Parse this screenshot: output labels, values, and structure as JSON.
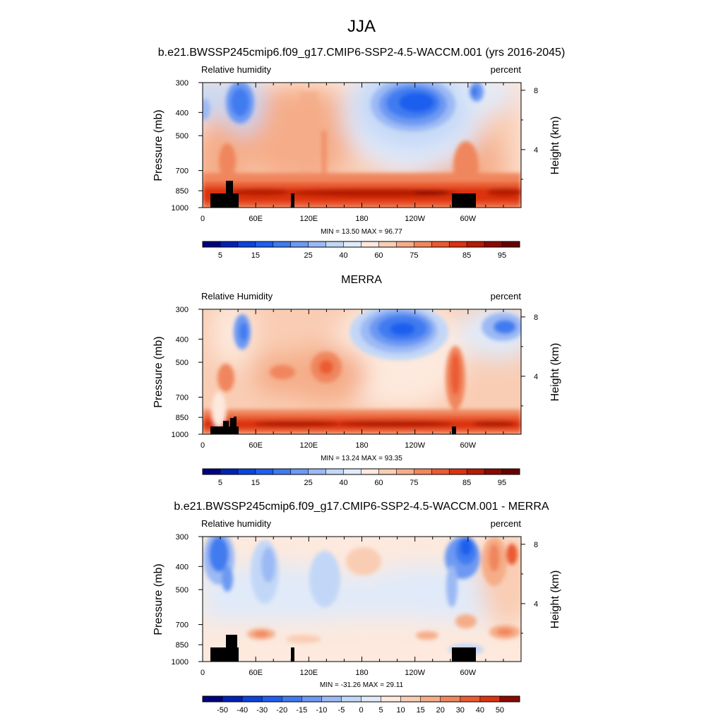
{
  "page": {
    "season": "JJA"
  },
  "chart_data": [
    {
      "type": "heatmap",
      "title": "b.e21.BWSSP245cmip6.f09_g17.CMIP6-SSP2-4.5-WACCM.001 (yrs 2016-2045)",
      "left_string": "Relative humidity",
      "right_string": "percent",
      "ylabel": "Pressure (mb)",
      "ylabel_right": "Height (km)",
      "x_ticks": [
        "0",
        "60E",
        "120E",
        "180",
        "120W",
        "60W"
      ],
      "y_ticks": [
        "300",
        "400",
        "500",
        "700",
        "850",
        "1000"
      ],
      "right_ticks": [
        "8",
        "4"
      ],
      "stats": "MIN =  13.50  MAX =  96.77",
      "colorbar_labels": [
        "5",
        "15",
        "25",
        "40",
        "60",
        "75",
        "85",
        "95"
      ],
      "colors": [
        "#00007f",
        "#0022b4",
        "#0a44dd",
        "#1f5eee",
        "#3f7bf0",
        "#6d99f2",
        "#9bb9f4",
        "#c2d7f7",
        "#e0eaf9",
        "#fde9dd",
        "#f9cdb4",
        "#f5ad89",
        "#f0865d",
        "#eb5b32",
        "#dc3210",
        "#b51b06",
        "#8a0a00",
        "#680000"
      ]
    },
    {
      "type": "heatmap",
      "title": "MERRA",
      "left_string": "Relative Humidity",
      "right_string": "percent",
      "ylabel": "Pressure (mb)",
      "ylabel_right": "Height (km)",
      "x_ticks": [
        "0",
        "60E",
        "120E",
        "180",
        "120W",
        "60W"
      ],
      "y_ticks": [
        "300",
        "400",
        "500",
        "700",
        "850",
        "1000"
      ],
      "right_ticks": [
        "8",
        "4"
      ],
      "stats": "MIN =  13.24  MAX =  93.35",
      "colorbar_labels": [
        "5",
        "15",
        "25",
        "40",
        "60",
        "75",
        "85",
        "95"
      ],
      "colors": [
        "#00007f",
        "#0022b4",
        "#0a44dd",
        "#1f5eee",
        "#3f7bf0",
        "#6d99f2",
        "#9bb9f4",
        "#c2d7f7",
        "#e0eaf9",
        "#fde9dd",
        "#f9cdb4",
        "#f5ad89",
        "#f0865d",
        "#eb5b32",
        "#dc3210",
        "#b51b06",
        "#8a0a00",
        "#680000"
      ]
    },
    {
      "type": "heatmap",
      "title": "b.e21.BWSSP245cmip6.f09_g17.CMIP6-SSP2-4.5-WACCM.001 - MERRA",
      "left_string": "Relative humidity",
      "right_string": "percent",
      "ylabel": "Pressure (mb)",
      "ylabel_right": "Height (km)",
      "x_ticks": [
        "0",
        "60E",
        "120E",
        "180",
        "120W",
        "60W"
      ],
      "y_ticks": [
        "300",
        "400",
        "500",
        "700",
        "850",
        "1000"
      ],
      "right_ticks": [
        "8",
        "4"
      ],
      "stats": "MIN = -31.26  MAX =  29.11",
      "colorbar_labels": [
        "-50",
        "-40",
        "-30",
        "-20",
        "-15",
        "-10",
        "-5",
        "0",
        "5",
        "10",
        "15",
        "20",
        "30",
        "40",
        "50"
      ],
      "colors": [
        "#00007f",
        "#0022b4",
        "#0a44dd",
        "#1f5eee",
        "#3f7bf0",
        "#6d99f2",
        "#9bb9f4",
        "#c2d7f7",
        "#e0eaf9",
        "#fde9dd",
        "#f9cdb4",
        "#f5ad89",
        "#f0865d",
        "#eb5b32",
        "#dc3210",
        "#8a0a00"
      ]
    }
  ]
}
